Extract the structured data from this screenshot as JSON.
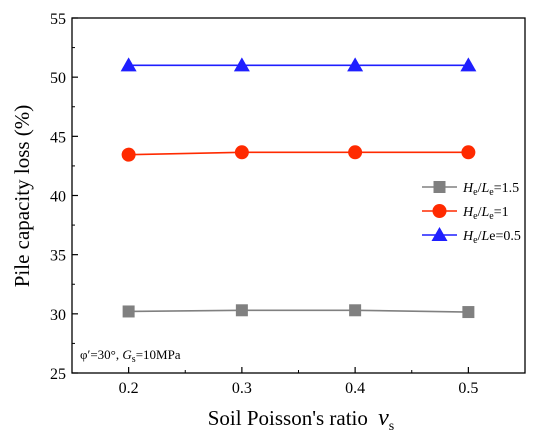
{
  "chart_data": {
    "type": "line",
    "xlabel": "Soil Poisson's ratio",
    "xlabel_symbol": "ν",
    "xlabel_sub": "s",
    "ylabel": "Pile capacity loss (%)",
    "x": [
      0.2,
      0.3,
      0.4,
      0.5
    ],
    "xlim": [
      0.15,
      0.55
    ],
    "ylim": [
      25,
      55
    ],
    "xticks": [
      "0.2",
      "0.3",
      "0.4",
      "0.5"
    ],
    "yticks": [
      "25",
      "30",
      "35",
      "40",
      "45",
      "50",
      "55"
    ],
    "grid": false,
    "legend_position": "right",
    "series": [
      {
        "name": "He/Le=1.5",
        "legend": {
          "a": "H",
          "a_sub": "e",
          "sep": "/",
          "b": "L",
          "b_sub": "e",
          "rest": "=1.5"
        },
        "color": "#808080",
        "marker": "square",
        "values": [
          30.2,
          30.3,
          30.3,
          30.15
        ]
      },
      {
        "name": "He/Le=1",
        "legend": {
          "a": "H",
          "a_sub": "e",
          "sep": "/",
          "b": "L",
          "b_sub": "e",
          "rest": "=1"
        },
        "color": "#ff2a00",
        "marker": "circle",
        "values": [
          43.45,
          43.65,
          43.65,
          43.65
        ]
      },
      {
        "name": "He/Le=0.5",
        "legend": {
          "a": "H",
          "a_sub": "e",
          "sep": "/",
          "b": "L",
          "b_sub": "",
          "rest": "e=0.5"
        },
        "color": "#1f1fff",
        "marker": "triangle",
        "values": [
          51.0,
          51.0,
          51.0,
          51.0
        ]
      }
    ],
    "annotation": {
      "phi": "φ′=30°, ",
      "g": "G",
      "g_sub": "s",
      "rest": "=10MPa"
    }
  }
}
